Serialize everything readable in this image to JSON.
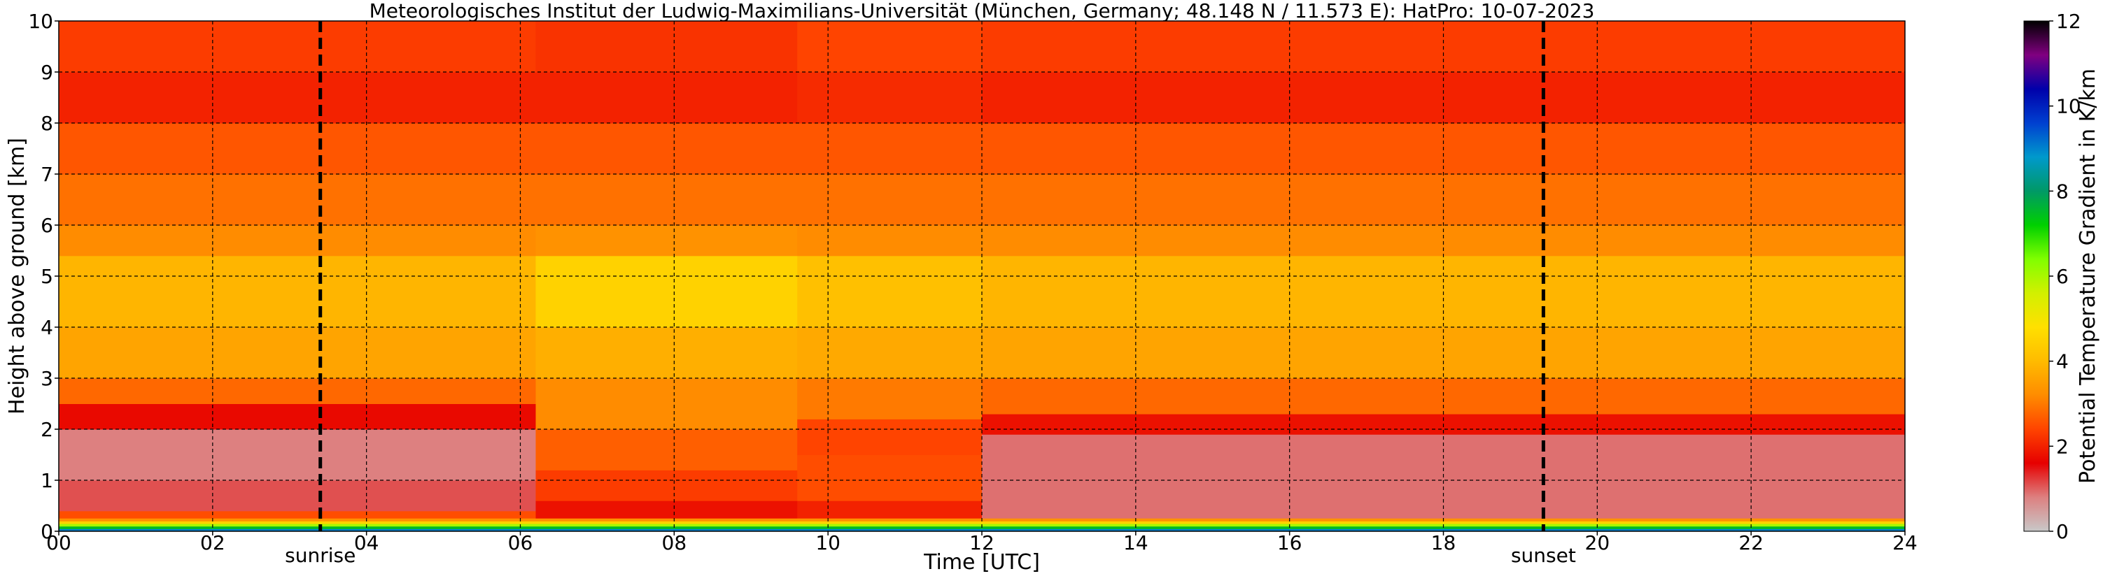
{
  "chart_data": {
    "type": "heatmap",
    "title": "Meteorologisches Institut der Ludwig-Maximilians-Universität (München, Germany; 48.148 N / 11.573 E):    HatPro: 10-07-2023",
    "xlabel": "Time [UTC]",
    "ylabel": "Height above ground [km]",
    "xlim": [
      0,
      24
    ],
    "ylim": [
      0,
      10
    ],
    "x_ticks": [
      "00",
      "02",
      "04",
      "06",
      "08",
      "10",
      "12",
      "14",
      "16",
      "18",
      "20",
      "22",
      "24"
    ],
    "y_ticks": [
      "0",
      "1",
      "2",
      "3",
      "4",
      "5",
      "6",
      "7",
      "8",
      "9",
      "10"
    ],
    "grid": true,
    "events": [
      {
        "label": "sunrise",
        "time": 3.4
      },
      {
        "label": "sunset",
        "time": 19.3
      }
    ],
    "colorbar": {
      "label": "Potential Temperature Gradient in K/km",
      "range": [
        0,
        12
      ],
      "ticks": [
        "0",
        "2",
        "4",
        "6",
        "8",
        "10",
        "12"
      ],
      "colors": [
        "#c8c8c8",
        "#dd8080",
        "#e60000",
        "#ff4400",
        "#ff8c00",
        "#ffbb00",
        "#ffe000",
        "#d2f000",
        "#80ff00",
        "#00d000",
        "#009966",
        "#0099cc",
        "#0040d0",
        "#0000aa",
        "#800080",
        "#000000"
      ]
    },
    "layers": [
      {
        "z0": 0.0,
        "z1": 0.05,
        "value": 9.0
      },
      {
        "z0": 0.05,
        "z1": 0.1,
        "value": 7.5
      },
      {
        "z0": 0.1,
        "z1": 0.15,
        "value": 6.0
      },
      {
        "z0": 0.15,
        "z1": 0.2,
        "value": 4.5
      },
      {
        "z0": 0.2,
        "z1": 0.25,
        "value": 3.3
      }
    ],
    "regime_profiles": [
      {
        "times": [
          0,
          6.2
        ],
        "profile": [
          [
            0.25,
            0.4,
            2.5
          ],
          [
            0.4,
            1.0,
            1.1
          ],
          [
            1.0,
            2.0,
            0.8
          ],
          [
            2.0,
            2.5,
            1.7
          ],
          [
            2.5,
            3.0,
            2.8
          ],
          [
            3.0,
            4.0,
            3.6
          ],
          [
            4.0,
            5.4,
            3.9
          ],
          [
            5.4,
            6.0,
            3.2
          ],
          [
            6.0,
            7.0,
            2.9
          ],
          [
            7.0,
            8.0,
            2.6
          ],
          [
            8.0,
            9.0,
            2.0
          ],
          [
            9.0,
            10.0,
            2.3
          ]
        ]
      },
      {
        "times": [
          6.2,
          9.6
        ],
        "profile": [
          [
            0.25,
            0.6,
            1.8
          ],
          [
            0.6,
            1.2,
            2.3
          ],
          [
            1.2,
            2.0,
            2.7
          ],
          [
            2.0,
            3.0,
            3.2
          ],
          [
            3.0,
            4.0,
            3.8
          ],
          [
            4.0,
            5.4,
            4.5
          ],
          [
            5.4,
            6.0,
            3.3
          ],
          [
            6.0,
            7.0,
            2.9
          ],
          [
            7.0,
            8.0,
            2.6
          ],
          [
            8.0,
            9.0,
            2.0
          ],
          [
            9.0,
            10.0,
            2.2
          ]
        ]
      },
      {
        "times": [
          9.6,
          12.0
        ],
        "profile": [
          [
            0.25,
            0.6,
            2.0
          ],
          [
            0.6,
            1.5,
            2.5
          ],
          [
            1.5,
            2.2,
            2.4
          ],
          [
            2.2,
            3.0,
            3.0
          ],
          [
            3.0,
            4.0,
            3.7
          ],
          [
            4.0,
            5.4,
            4.1
          ],
          [
            5.4,
            6.0,
            3.2
          ],
          [
            6.0,
            7.0,
            2.9
          ],
          [
            7.0,
            8.0,
            2.6
          ],
          [
            8.0,
            9.0,
            2.1
          ],
          [
            9.0,
            10.0,
            2.4
          ]
        ]
      },
      {
        "times": [
          12.0,
          24.0
        ],
        "profile": [
          [
            0.25,
            1.9,
            0.9
          ],
          [
            1.9,
            2.3,
            1.8
          ],
          [
            2.3,
            3.0,
            2.8
          ],
          [
            3.0,
            4.0,
            3.6
          ],
          [
            4.0,
            5.4,
            3.9
          ],
          [
            5.4,
            6.0,
            3.2
          ],
          [
            6.0,
            7.0,
            2.9
          ],
          [
            7.0,
            8.0,
            2.6
          ],
          [
            8.0,
            9.0,
            2.0
          ],
          [
            9.0,
            10.0,
            2.3
          ]
        ]
      }
    ]
  }
}
